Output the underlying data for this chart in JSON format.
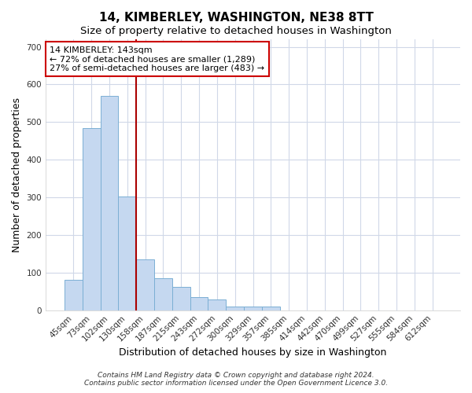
{
  "title": "14, KIMBERLEY, WASHINGTON, NE38 8TT",
  "subtitle": "Size of property relative to detached houses in Washington",
  "xlabel": "Distribution of detached houses by size in Washington",
  "ylabel": "Number of detached properties",
  "categories": [
    "45sqm",
    "73sqm",
    "102sqm",
    "130sqm",
    "158sqm",
    "187sqm",
    "215sqm",
    "243sqm",
    "272sqm",
    "300sqm",
    "329sqm",
    "357sqm",
    "385sqm",
    "414sqm",
    "442sqm",
    "470sqm",
    "499sqm",
    "527sqm",
    "555sqm",
    "584sqm",
    "612sqm"
  ],
  "values": [
    80,
    483,
    570,
    303,
    135,
    85,
    63,
    35,
    28,
    10,
    10,
    10,
    0,
    0,
    0,
    0,
    0,
    0,
    0,
    0,
    0
  ],
  "bar_color": "#c5d8f0",
  "bar_edge_color": "#7bafd4",
  "vline_color": "#aa0000",
  "vline_x": 3.48,
  "annotation_line1": "14 KIMBERLEY: 143sqm",
  "annotation_line2": "← 72% of detached houses are smaller (1,289)",
  "annotation_line3": "27% of semi-detached houses are larger (483) →",
  "annotation_box_facecolor": "#ffffff",
  "annotation_box_edgecolor": "#cc0000",
  "ylim": [
    0,
    720
  ],
  "yticks": [
    0,
    100,
    200,
    300,
    400,
    500,
    600,
    700
  ],
  "title_fontsize": 11,
  "subtitle_fontsize": 9.5,
  "axis_label_fontsize": 9,
  "tick_fontsize": 7.5,
  "annotation_fontsize": 8,
  "footer_line1": "Contains HM Land Registry data © Crown copyright and database right 2024.",
  "footer_line2": "Contains public sector information licensed under the Open Government Licence 3.0.",
  "background_color": "#ffffff",
  "plot_bg_color": "#ffffff",
  "grid_color": "#d0d8e8"
}
